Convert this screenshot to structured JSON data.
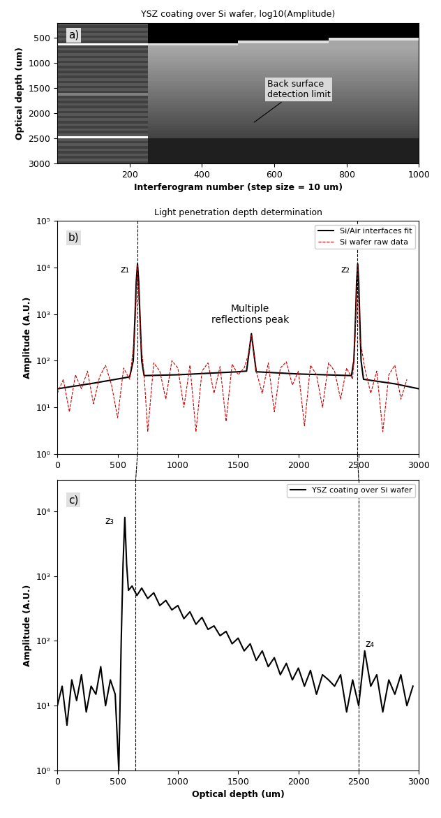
{
  "chart_data": [
    {
      "type": "heatmap",
      "title": "YSZ coating over Si wafer, log10(Amplitude)",
      "panel_label": "a)",
      "x_label": "Interferogram number (step size = 10 um)",
      "y_label": "Optical depth (um)",
      "xlim": [
        0,
        1000
      ],
      "xticks": [
        200,
        400,
        600,
        800,
        1000
      ],
      "ylim": [
        3000,
        200
      ],
      "yticks": [
        500,
        1000,
        1500,
        2000,
        2500,
        3000
      ],
      "color_range": [
        0.8,
        4.0
      ],
      "x_edges": [
        0,
        250,
        500,
        750,
        1000
      ],
      "y_edges": [
        200,
        250,
        300,
        350,
        400,
        450,
        500,
        550,
        600,
        650,
        700,
        750,
        800,
        850,
        900,
        950,
        1000,
        1050,
        1100,
        1150,
        1200,
        1250,
        1300,
        1350,
        1400,
        1450,
        1500,
        1550,
        1600,
        1650,
        1700,
        1750,
        1800,
        1850,
        1900,
        1950,
        2000,
        2050,
        2100,
        2150,
        2200,
        2250,
        2300,
        2350,
        2400,
        2450,
        2500,
        2550,
        2600,
        2650,
        2700,
        2750,
        2800,
        2850,
        2900,
        2950,
        3000
      ],
      "cells": [
        [
          1.9,
          0.8,
          0.8,
          0.8
        ],
        [
          1.6,
          0.8,
          0.8,
          0.8
        ],
        [
          1.9,
          0.8,
          0.8,
          0.8
        ],
        [
          1.6,
          0.8,
          0.8,
          0.8
        ],
        [
          1.9,
          0.8,
          0.8,
          0.8
        ],
        [
          1.6,
          0.8,
          0.8,
          0.8
        ],
        [
          1.9,
          0.8,
          0.8,
          3.6
        ],
        [
          1.6,
          0.8,
          3.6,
          2.9
        ],
        [
          4.0,
          3.6,
          2.9,
          2.88
        ],
        [
          1.6,
          2.9,
          2.9,
          2.9
        ],
        [
          1.9,
          2.87,
          2.87,
          2.87
        ],
        [
          1.6,
          2.83,
          2.83,
          2.83
        ],
        [
          1.9,
          2.8,
          2.8,
          2.8
        ],
        [
          1.6,
          2.76,
          2.76,
          2.76
        ],
        [
          1.9,
          2.73,
          2.73,
          2.73
        ],
        [
          1.6,
          2.69,
          2.69,
          2.69
        ],
        [
          1.9,
          2.66,
          2.66,
          2.66
        ],
        [
          1.6,
          2.62,
          2.62,
          2.62
        ],
        [
          1.9,
          2.59,
          2.59,
          2.59
        ],
        [
          1.6,
          2.55,
          2.55,
          2.55
        ],
        [
          1.9,
          2.52,
          2.52,
          2.52
        ],
        [
          1.6,
          2.48,
          2.48,
          2.48
        ],
        [
          1.9,
          2.45,
          2.45,
          2.45
        ],
        [
          1.6,
          2.41,
          2.41,
          2.41
        ],
        [
          1.9,
          2.38,
          2.38,
          2.38
        ],
        [
          1.6,
          2.34,
          2.34,
          2.34
        ],
        [
          1.9,
          2.31,
          2.31,
          2.31
        ],
        [
          1.6,
          2.27,
          2.27,
          2.27
        ],
        [
          2.4,
          2.24,
          2.24,
          2.24
        ],
        [
          1.6,
          2.2,
          2.2,
          2.2
        ],
        [
          1.9,
          2.17,
          2.17,
          2.17
        ],
        [
          1.6,
          2.13,
          2.13,
          2.13
        ],
        [
          1.9,
          2.1,
          2.1,
          2.1
        ],
        [
          1.6,
          2.06,
          2.06,
          2.06
        ],
        [
          1.9,
          2.03,
          2.03,
          2.03
        ],
        [
          1.6,
          1.99,
          1.99,
          1.99
        ],
        [
          1.9,
          1.96,
          1.96,
          1.96
        ],
        [
          1.6,
          1.92,
          1.92,
          1.92
        ],
        [
          1.9,
          1.89,
          1.89,
          1.89
        ],
        [
          1.6,
          1.85,
          1.85,
          1.85
        ],
        [
          1.9,
          1.82,
          1.82,
          1.82
        ],
        [
          1.6,
          1.78,
          1.78,
          1.78
        ],
        [
          1.9,
          1.75,
          1.75,
          1.75
        ],
        [
          1.6,
          1.71,
          1.71,
          1.71
        ],
        [
          1.9,
          1.68,
          1.68,
          1.68
        ],
        [
          4.0,
          1.64,
          1.64,
          1.64
        ],
        [
          1.9,
          1.2,
          1.2,
          1.2
        ],
        [
          1.6,
          1.2,
          1.2,
          1.2
        ],
        [
          1.9,
          1.2,
          1.2,
          1.2
        ],
        [
          1.6,
          1.2,
          1.2,
          1.2
        ],
        [
          1.9,
          1.2,
          1.2,
          1.2
        ],
        [
          1.6,
          1.2,
          1.2,
          1.2
        ],
        [
          1.9,
          1.2,
          1.2,
          1.2
        ],
        [
          1.6,
          1.2,
          1.2,
          1.2
        ],
        [
          1.9,
          1.2,
          1.2,
          1.2
        ],
        [
          1.6,
          1.2,
          1.2,
          1.2
        ]
      ],
      "annotations": [
        {
          "text": "Back surface\ndetection limit",
          "x": 540,
          "y": 2200
        }
      ]
    },
    {
      "type": "line",
      "title": "Light penetration depth determination",
      "panel_label": "b)",
      "y_label": "Amplitude (A.U.)",
      "log": "y",
      "xlim": [
        0,
        3000
      ],
      "xticks": [
        0,
        500,
        1000,
        1500,
        2000,
        2500,
        3000
      ],
      "ylim": [
        1,
        100000
      ],
      "yticks": [
        {
          "value": 1,
          "label": "10⁰"
        },
        {
          "value": 10,
          "label": "10¹"
        },
        {
          "value": 100,
          "label": "10²"
        },
        {
          "value": 1000,
          "label": "10³"
        },
        {
          "value": 10000,
          "label": "10⁴"
        },
        {
          "value": 100000,
          "label": "10⁵"
        }
      ],
      "legend": "upper right",
      "series": [
        {
          "name": "Si/Air interfaces fit",
          "color": "#000000",
          "line_style": "solid",
          "x": [
            0,
            300,
            600,
            630,
            645,
            655,
            665,
            675,
            685,
            700,
            720,
            1000,
            1500,
            1570,
            1590,
            1610,
            1630,
            1650,
            2000,
            2440,
            2460,
            2475,
            2483,
            2492,
            2500,
            2508,
            2520,
            2540,
            2800,
            3000
          ],
          "values": [
            25,
            33,
            45,
            100,
            1000,
            5000,
            12000,
            5000,
            1000,
            100,
            48,
            50,
            58,
            60,
            150,
            380,
            150,
            58,
            52,
            48,
            100,
            1000,
            5000,
            12000,
            5000,
            1000,
            100,
            40,
            32,
            25
          ]
        },
        {
          "name": "Si wafer raw data",
          "color": "#cc0000",
          "line_style": "dashed",
          "x": [
            0,
            50,
            100,
            150,
            200,
            250,
            300,
            350,
            400,
            450,
            500,
            550,
            600,
            640,
            665,
            690,
            720,
            750,
            800,
            850,
            900,
            950,
            1000,
            1050,
            1100,
            1150,
            1200,
            1250,
            1300,
            1350,
            1400,
            1450,
            1500,
            1550,
            1590,
            1610,
            1630,
            1650,
            1700,
            1750,
            1800,
            1850,
            1900,
            1950,
            2000,
            2050,
            2100,
            2150,
            2200,
            2250,
            2300,
            2350,
            2400,
            2450,
            2470,
            2490,
            2510,
            2550,
            2600,
            2650,
            2700,
            2750,
            2800,
            2850,
            2900
          ],
          "values": [
            20,
            40,
            8,
            50,
            25,
            60,
            12,
            45,
            80,
            30,
            6,
            70,
            40,
            300,
            11000,
            300,
            50,
            3,
            90,
            60,
            15,
            100,
            70,
            10,
            80,
            3,
            60,
            90,
            20,
            75,
            5,
            85,
            50,
            70,
            150,
            350,
            150,
            60,
            20,
            90,
            8,
            70,
            95,
            30,
            60,
            4,
            80,
            50,
            10,
            90,
            60,
            15,
            70,
            40,
            300,
            11000,
            300,
            70,
            20,
            60,
            3,
            50,
            80,
            15,
            40
          ]
        }
      ],
      "annotations": [
        {
          "text": "z₁",
          "x": 560,
          "y": 9000
        },
        {
          "text": "z₂",
          "x": 2390,
          "y": 9000
        },
        {
          "text": "Multiple\nreflections peak",
          "x": 1600,
          "y": 1000
        }
      ],
      "reference_lines": [
        665,
        2490
      ]
    },
    {
      "type": "line",
      "panel_label": "c)",
      "x_label": "Optical depth (um)",
      "y_label": "Amplitude (A.U.)",
      "log": "y",
      "xlim": [
        0,
        3000
      ],
      "xticks": [
        0,
        500,
        1000,
        1500,
        2000,
        2500,
        3000
      ],
      "ylim": [
        1,
        30000
      ],
      "yticks": [
        {
          "value": 1,
          "label": "10⁰"
        },
        {
          "value": 10,
          "label": "10¹"
        },
        {
          "value": 100,
          "label": "10²"
        },
        {
          "value": 1000,
          "label": "10³"
        },
        {
          "value": 10000,
          "label": "10⁴"
        }
      ],
      "legend": "upper right",
      "series": [
        {
          "name": "YSZ coating over Si wafer",
          "color": "#000000",
          "line_style": "solid",
          "x": [
            0,
            40,
            80,
            120,
            160,
            200,
            240,
            280,
            320,
            360,
            400,
            440,
            480,
            510,
            530,
            545,
            560,
            575,
            590,
            620,
            660,
            700,
            750,
            800,
            850,
            900,
            950,
            1000,
            1050,
            1100,
            1150,
            1200,
            1250,
            1300,
            1350,
            1400,
            1450,
            1500,
            1550,
            1600,
            1650,
            1700,
            1750,
            1800,
            1850,
            1900,
            1950,
            2000,
            2050,
            2100,
            2150,
            2200,
            2250,
            2300,
            2350,
            2400,
            2450,
            2500,
            2550,
            2600,
            2650,
            2700,
            2750,
            2800,
            2850,
            2900,
            2950
          ],
          "values": [
            10,
            20,
            5,
            25,
            12,
            30,
            8,
            20,
            15,
            40,
            10,
            25,
            15,
            1,
            100,
            1500,
            8000,
            1500,
            600,
            700,
            500,
            650,
            450,
            550,
            350,
            420,
            300,
            350,
            220,
            280,
            180,
            230,
            150,
            170,
            120,
            140,
            90,
            110,
            70,
            90,
            50,
            70,
            40,
            55,
            30,
            45,
            25,
            38,
            20,
            35,
            15,
            30,
            25,
            20,
            30,
            8,
            25,
            10,
            70,
            20,
            30,
            8,
            25,
            15,
            30,
            10,
            20
          ]
        }
      ],
      "annotations": [
        {
          "text": "z₃",
          "x": 430,
          "y": 7000
        },
        {
          "text": "z₄",
          "x": 2590,
          "y": 90
        }
      ],
      "reference_lines": [
        650,
        2500
      ]
    }
  ]
}
